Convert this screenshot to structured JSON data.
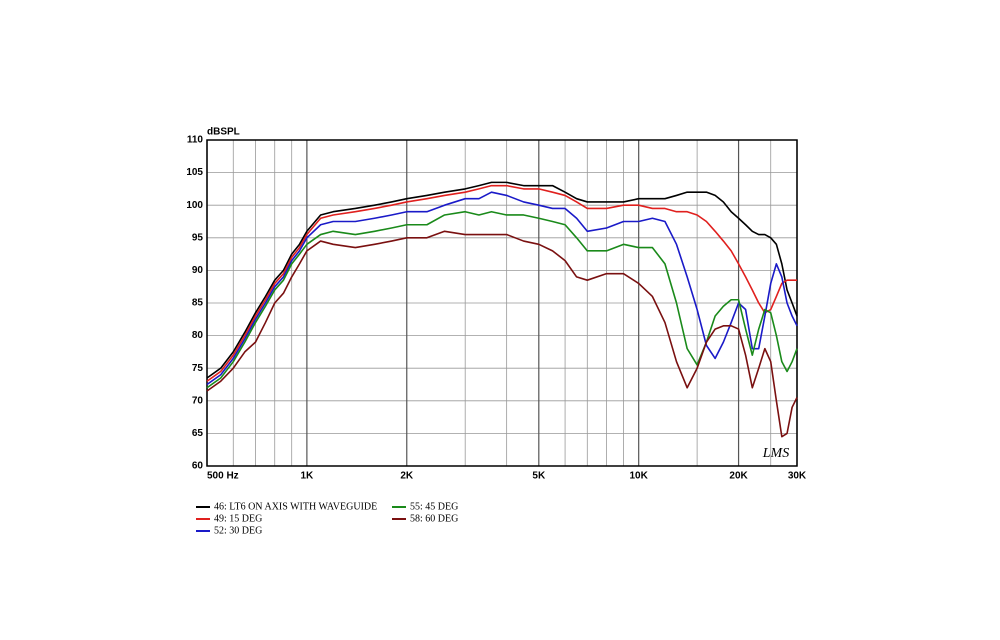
{
  "chart_data": {
    "type": "line",
    "y_label": "dBSPL",
    "annotation": "LMS",
    "x_scale": "log",
    "grid": true,
    "xlim": [
      500,
      30000
    ],
    "ylim": [
      60,
      110
    ],
    "yticks": [
      60,
      65,
      70,
      75,
      80,
      85,
      90,
      95,
      100,
      105,
      110
    ],
    "xticks": [
      {
        "value": 500,
        "label": "500 Hz"
      },
      {
        "value": 1000,
        "label": "1K"
      },
      {
        "value": 2000,
        "label": "2K"
      },
      {
        "value": 5000,
        "label": "5K"
      },
      {
        "value": 10000,
        "label": "10K"
      },
      {
        "value": 20000,
        "label": "20K"
      },
      {
        "value": 30000,
        "label": "30K"
      }
    ],
    "xminorticks": [
      600,
      700,
      800,
      900,
      3000,
      4000,
      6000,
      7000,
      8000,
      9000,
      15000,
      25000
    ],
    "x": [
      500,
      550,
      600,
      650,
      700,
      750,
      800,
      850,
      900,
      950,
      1000,
      1100,
      1200,
      1400,
      1600,
      1800,
      2000,
      2300,
      2600,
      3000,
      3300,
      3600,
      4000,
      4500,
      5000,
      5500,
      6000,
      6500,
      7000,
      8000,
      9000,
      10000,
      11000,
      12000,
      13000,
      14000,
      15000,
      16000,
      17000,
      18000,
      19000,
      20000,
      21000,
      22000,
      23000,
      24000,
      25000,
      26000,
      27000,
      28000,
      29000,
      30000
    ],
    "series": [
      {
        "name": "46: LT6 ON AXIS WITH WAVEGUIDE",
        "color": "#000000",
        "values": [
          73.5,
          75,
          77.5,
          80.5,
          83.5,
          86,
          88.5,
          90,
          92.5,
          94,
          96,
          98.5,
          99,
          99.5,
          100,
          100.5,
          101,
          101.5,
          102,
          102.5,
          103,
          103.5,
          103.5,
          103,
          103,
          103,
          102,
          101,
          100.5,
          100.5,
          100.5,
          101,
          101,
          101,
          101.5,
          102,
          102,
          102,
          101.5,
          100.5,
          99,
          98,
          97,
          96,
          95.5,
          95.5,
          95,
          94,
          91,
          87,
          85,
          83
        ]
      },
      {
        "name": "49: 15 DEG",
        "color": "#e0201e",
        "values": [
          73,
          74.5,
          77,
          80,
          83,
          85.5,
          88,
          89.5,
          92,
          93.5,
          95.5,
          98,
          98.5,
          99,
          99.5,
          100,
          100.5,
          101,
          101.5,
          102,
          102.5,
          103,
          103,
          102.5,
          102.5,
          102,
          101.5,
          100.5,
          99.5,
          99.5,
          100,
          100,
          99.5,
          99.5,
          99,
          99,
          98.5,
          97.5,
          96,
          94.5,
          93,
          91,
          89,
          87,
          85,
          83.5,
          84,
          86,
          88,
          88.5,
          88.5,
          88.5
        ]
      },
      {
        "name": "52: 30 DEG",
        "color": "#1a1ac8",
        "values": [
          72.5,
          74,
          76.5,
          79.5,
          82.5,
          85,
          87.5,
          89,
          91.5,
          93,
          95,
          97,
          97.5,
          97.5,
          98,
          98.5,
          99,
          99,
          100,
          101,
          101,
          102,
          101.5,
          100.5,
          100,
          99.5,
          99.5,
          98,
          96,
          96.5,
          97.5,
          97.5,
          98,
          97.5,
          94,
          89,
          84,
          78.5,
          76.5,
          79,
          82,
          85,
          84,
          78,
          78,
          83,
          88,
          91,
          89,
          85,
          83,
          81.5
        ]
      },
      {
        "name": "55: 45 DEG",
        "color": "#1a8a1a",
        "values": [
          72,
          73.5,
          76,
          79,
          82,
          84.5,
          87,
          88.5,
          91,
          92.5,
          94,
          95.5,
          96,
          95.5,
          96,
          96.5,
          97,
          97,
          98.5,
          99,
          98.5,
          99,
          98.5,
          98.5,
          98,
          97.5,
          97,
          95,
          93,
          93,
          94,
          93.5,
          93.5,
          91,
          85,
          78,
          75.5,
          79,
          83,
          84.5,
          85.5,
          85.5,
          81,
          77,
          81,
          84,
          83.5,
          80,
          76,
          74.5,
          76,
          78
        ]
      },
      {
        "name": "58: 60 DEG",
        "color": "#7a1010",
        "values": [
          71.5,
          73,
          75,
          77.5,
          79,
          82,
          85,
          86.5,
          89,
          91,
          93,
          94.5,
          94,
          93.5,
          94,
          94.5,
          95,
          95,
          96,
          95.5,
          95.5,
          95.5,
          95.5,
          94.5,
          94,
          93,
          91.5,
          89,
          88.5,
          89.5,
          89.5,
          88,
          86,
          82,
          76,
          72,
          75,
          79,
          81,
          81.5,
          81.5,
          81,
          77,
          72,
          75,
          78,
          76,
          70,
          64.5,
          65,
          69,
          70.5
        ]
      }
    ]
  }
}
